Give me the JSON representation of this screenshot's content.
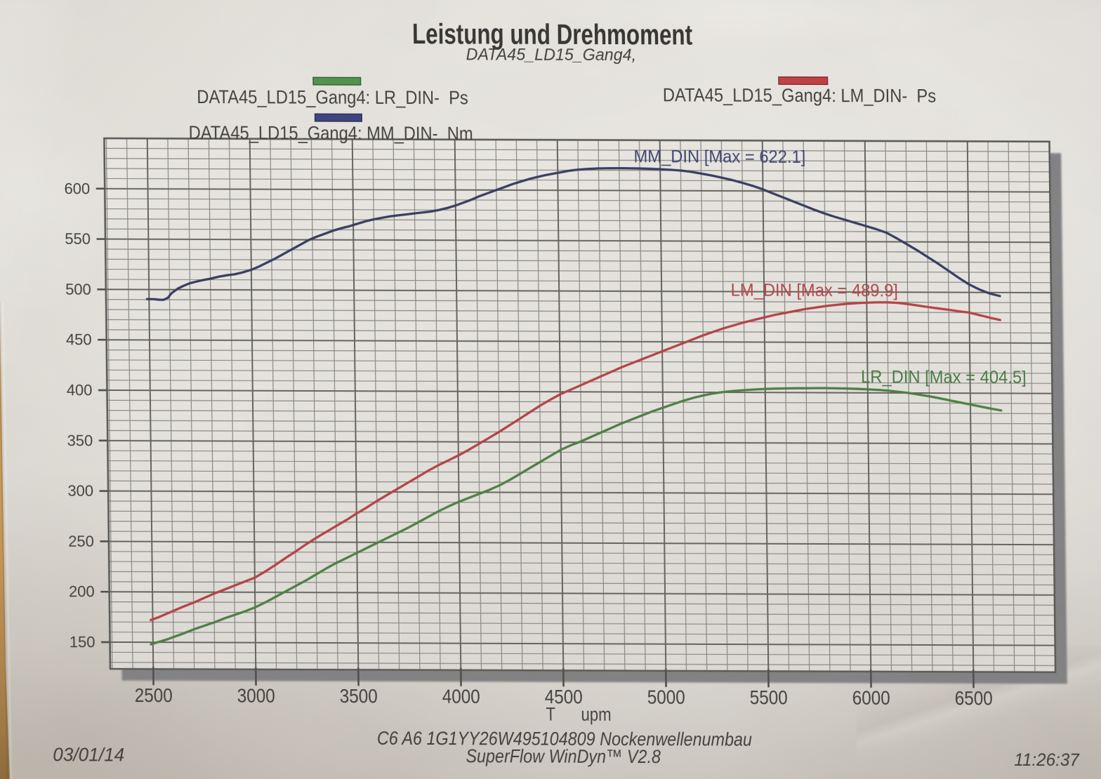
{
  "title": "Leistung und Drehmoment",
  "subtitle": "DATA45_LD15_Gang4,",
  "legend": [
    {
      "series": "LR_DIN",
      "label": "DATA45_LD15_Gang4: LR_DIN-  Ps",
      "color": "#3c8a3c",
      "edge": "#1e5420"
    },
    {
      "series": "MM_DIN",
      "label": "DATA45_LD15_Gang4: MM_DIN-  Nm",
      "color": "#2a3172",
      "edge": "#151a45"
    },
    {
      "series": "LM_DIN",
      "label": "DATA45_LD15_Gang4: LM_DIN-  Ps",
      "color": "#bb2d33",
      "edge": "#7c181d"
    }
  ],
  "annotations": [
    {
      "series": "MM_DIN",
      "text": "MM_DIN [Max = 622.1]",
      "color": "#2b3462"
    },
    {
      "series": "LM_DIN",
      "text": "LM_DIN [Max = 489.9]",
      "color": "#ae3237"
    },
    {
      "series": "LR_DIN",
      "text": "LR_DIN [Max = 404.5]",
      "color": "#35702f"
    }
  ],
  "axis": {
    "x_label": "T      upm",
    "x_tick_labels": [
      "2500",
      "3000",
      "3500",
      "4000",
      "4500",
      "5000",
      "5500",
      "6000",
      "6500"
    ],
    "y_tick_labels": [
      "150",
      "200",
      "250",
      "300",
      "350",
      "400",
      "450",
      "500",
      "550",
      "600"
    ]
  },
  "footer": {
    "date": "03/01/14",
    "vehicle": "C6 A6 1G1YY26W495104809 Nockenwellenumbau",
    "software": "SuperFlow WinDyn™ V2.8",
    "time": "11:26:37"
  },
  "chart_data": {
    "type": "line",
    "title": "Leistung und Drehmoment",
    "xlabel": "T upm",
    "x_ticks": [
      2500,
      3000,
      3500,
      4000,
      4500,
      5000,
      5500,
      6000,
      6500
    ],
    "y_ticks": [
      150,
      200,
      250,
      300,
      350,
      400,
      450,
      500,
      550,
      600
    ],
    "xlim": [
      2290,
      6900
    ],
    "ylim": [
      123.5,
      650
    ],
    "x_minor_step": 100,
    "y_minor_step": 10,
    "x_major_step": 500,
    "y_major_step": 50,
    "grid": true,
    "series": [
      {
        "name": "MM_DIN",
        "unit": "Nm",
        "max": 622.1,
        "color": "#222950",
        "points": [
          [
            2490,
            490.5
          ],
          [
            2520,
            490.5
          ],
          [
            2550,
            490
          ],
          [
            2570,
            489.8
          ],
          [
            2592,
            492
          ],
          [
            2610,
            496.5
          ],
          [
            2640,
            501
          ],
          [
            2670,
            504
          ],
          [
            2700,
            506.5
          ],
          [
            2730,
            508
          ],
          [
            2760,
            509.5
          ],
          [
            2800,
            511
          ],
          [
            2840,
            513
          ],
          [
            2880,
            514.5
          ],
          [
            2920,
            515.5
          ],
          [
            2960,
            517.5
          ],
          [
            3000,
            520
          ],
          [
            3040,
            523.5
          ],
          [
            3080,
            527.5
          ],
          [
            3120,
            531.5
          ],
          [
            3160,
            536
          ],
          [
            3200,
            540.5
          ],
          [
            3240,
            545
          ],
          [
            3280,
            549.5
          ],
          [
            3320,
            553
          ],
          [
            3360,
            556
          ],
          [
            3400,
            559
          ],
          [
            3440,
            561.5
          ],
          [
            3480,
            563.5
          ],
          [
            3520,
            566
          ],
          [
            3560,
            568.5
          ],
          [
            3600,
            570.5
          ],
          [
            3640,
            572
          ],
          [
            3680,
            573.5
          ],
          [
            3720,
            574.5
          ],
          [
            3760,
            575.5
          ],
          [
            3800,
            576.5
          ],
          [
            3840,
            577.5
          ],
          [
            3880,
            578.5
          ],
          [
            3920,
            580
          ],
          [
            3960,
            582
          ],
          [
            4000,
            584.5
          ],
          [
            4040,
            587.5
          ],
          [
            4080,
            590.5
          ],
          [
            4120,
            594
          ],
          [
            4160,
            597
          ],
          [
            4200,
            600
          ],
          [
            4240,
            603
          ],
          [
            4280,
            606
          ],
          [
            4320,
            608.5
          ],
          [
            4360,
            611
          ],
          [
            4400,
            613
          ],
          [
            4440,
            615
          ],
          [
            4480,
            616.5
          ],
          [
            4520,
            618
          ],
          [
            4560,
            619.5
          ],
          [
            4600,
            620.5
          ],
          [
            4650,
            621.3
          ],
          [
            4700,
            621.8
          ],
          [
            4750,
            622
          ],
          [
            4800,
            622.1
          ],
          [
            4850,
            622
          ],
          [
            4900,
            621.9
          ],
          [
            4950,
            621.6
          ],
          [
            5000,
            621.2
          ],
          [
            5050,
            620.7
          ],
          [
            5100,
            620
          ],
          [
            5150,
            618.7
          ],
          [
            5200,
            617
          ],
          [
            5250,
            615.2
          ],
          [
            5300,
            613
          ],
          [
            5350,
            610.7
          ],
          [
            5400,
            608
          ],
          [
            5450,
            605
          ],
          [
            5500,
            601.5
          ],
          [
            5550,
            597.5
          ],
          [
            5600,
            593.5
          ],
          [
            5650,
            589.5
          ],
          [
            5700,
            585.5
          ],
          [
            5750,
            581.5
          ],
          [
            5800,
            577.8
          ],
          [
            5850,
            574.5
          ],
          [
            5900,
            571.5
          ],
          [
            5950,
            568.5
          ],
          [
            6000,
            565.5
          ],
          [
            6050,
            562.5
          ],
          [
            6100,
            559
          ],
          [
            6150,
            553.5
          ],
          [
            6200,
            547.5
          ],
          [
            6250,
            541.5
          ],
          [
            6300,
            535
          ],
          [
            6350,
            528.5
          ],
          [
            6400,
            521.5
          ],
          [
            6450,
            514.5
          ],
          [
            6500,
            508
          ],
          [
            6550,
            503
          ],
          [
            6600,
            499
          ],
          [
            6650,
            496.5
          ]
        ]
      },
      {
        "name": "LM_DIN",
        "unit": "Ps",
        "max": 489.9,
        "color": "#ad2f34",
        "points": [
          [
            2490,
            172
          ],
          [
            2530,
            175
          ],
          [
            2570,
            178.5
          ],
          [
            2610,
            182
          ],
          [
            2650,
            185.5
          ],
          [
            2700,
            189.5
          ],
          [
            2750,
            194
          ],
          [
            2800,
            198.5
          ],
          [
            2850,
            202.5
          ],
          [
            2900,
            206.5
          ],
          [
            2950,
            210.5
          ],
          [
            3000,
            214.5
          ],
          [
            3050,
            220.5
          ],
          [
            3100,
            227
          ],
          [
            3150,
            234
          ],
          [
            3200,
            240.5
          ],
          [
            3250,
            247.5
          ],
          [
            3300,
            254
          ],
          [
            3350,
            260
          ],
          [
            3400,
            266
          ],
          [
            3450,
            272
          ],
          [
            3500,
            278.5
          ],
          [
            3550,
            284.5
          ],
          [
            3600,
            291
          ],
          [
            3650,
            297
          ],
          [
            3700,
            303
          ],
          [
            3750,
            309
          ],
          [
            3800,
            315
          ],
          [
            3850,
            321
          ],
          [
            3900,
            326.5
          ],
          [
            3950,
            331.5
          ],
          [
            4000,
            336.5
          ],
          [
            4050,
            342
          ],
          [
            4100,
            348
          ],
          [
            4150,
            354
          ],
          [
            4200,
            360
          ],
          [
            4250,
            366.5
          ],
          [
            4300,
            373
          ],
          [
            4350,
            379.5
          ],
          [
            4400,
            386
          ],
          [
            4450,
            392
          ],
          [
            4500,
            397.5
          ],
          [
            4550,
            402
          ],
          [
            4600,
            406.5
          ],
          [
            4650,
            411
          ],
          [
            4700,
            415.5
          ],
          [
            4750,
            420
          ],
          [
            4800,
            424.5
          ],
          [
            4850,
            428.5
          ],
          [
            4900,
            432.5
          ],
          [
            4950,
            436.5
          ],
          [
            5000,
            440.5
          ],
          [
            5050,
            444.5
          ],
          [
            5100,
            448.5
          ],
          [
            5150,
            452.5
          ],
          [
            5200,
            456.5
          ],
          [
            5250,
            460
          ],
          [
            5300,
            463.5
          ],
          [
            5350,
            466.5
          ],
          [
            5400,
            469.5
          ],
          [
            5450,
            472
          ],
          [
            5500,
            474.5
          ],
          [
            5550,
            477
          ],
          [
            5600,
            479
          ],
          [
            5650,
            481
          ],
          [
            5700,
            483
          ],
          [
            5750,
            484.5
          ],
          [
            5800,
            486
          ],
          [
            5850,
            487.2
          ],
          [
            5900,
            488.2
          ],
          [
            5950,
            489
          ],
          [
            6000,
            489.5
          ],
          [
            6050,
            489.8
          ],
          [
            6100,
            489.9
          ],
          [
            6150,
            489.4
          ],
          [
            6200,
            488.3
          ],
          [
            6250,
            486.8
          ],
          [
            6300,
            485.3
          ],
          [
            6350,
            484
          ],
          [
            6400,
            482.7
          ],
          [
            6450,
            481.3
          ],
          [
            6500,
            480
          ],
          [
            6550,
            477.5
          ],
          [
            6600,
            475
          ],
          [
            6650,
            472.8
          ]
        ]
      },
      {
        "name": "LR_DIN",
        "unit": "Ps",
        "max": 404.5,
        "color": "#3a7231",
        "points": [
          [
            2490,
            148
          ],
          [
            2530,
            150.5
          ],
          [
            2570,
            153
          ],
          [
            2610,
            156
          ],
          [
            2650,
            159
          ],
          [
            2700,
            163
          ],
          [
            2750,
            166.5
          ],
          [
            2800,
            170
          ],
          [
            2850,
            174
          ],
          [
            2900,
            177.5
          ],
          [
            2950,
            181
          ],
          [
            3000,
            185
          ],
          [
            3050,
            190
          ],
          [
            3100,
            195.5
          ],
          [
            3150,
            201
          ],
          [
            3200,
            206.5
          ],
          [
            3250,
            212
          ],
          [
            3300,
            218
          ],
          [
            3350,
            224
          ],
          [
            3400,
            229.5
          ],
          [
            3450,
            234.5
          ],
          [
            3500,
            239.5
          ],
          [
            3550,
            244.5
          ],
          [
            3600,
            249.5
          ],
          [
            3650,
            254.5
          ],
          [
            3700,
            259.5
          ],
          [
            3750,
            264.5
          ],
          [
            3800,
            270
          ],
          [
            3850,
            275.5
          ],
          [
            3900,
            281
          ],
          [
            3950,
            286
          ],
          [
            4000,
            290.5
          ],
          [
            4050,
            294.5
          ],
          [
            4100,
            298.5
          ],
          [
            4150,
            302.5
          ],
          [
            4200,
            307
          ],
          [
            4250,
            312.5
          ],
          [
            4300,
            318.5
          ],
          [
            4350,
            324.5
          ],
          [
            4400,
            330.5
          ],
          [
            4450,
            336.5
          ],
          [
            4500,
            342.5
          ],
          [
            4550,
            347
          ],
          [
            4600,
            351
          ],
          [
            4650,
            355.5
          ],
          [
            4700,
            360
          ],
          [
            4750,
            364.5
          ],
          [
            4800,
            369
          ],
          [
            4850,
            373
          ],
          [
            4900,
            377
          ],
          [
            4950,
            381
          ],
          [
            5000,
            384.5
          ],
          [
            5050,
            388
          ],
          [
            5100,
            391.5
          ],
          [
            5150,
            394.5
          ],
          [
            5200,
            397
          ],
          [
            5250,
            399
          ],
          [
            5300,
            400.5
          ],
          [
            5350,
            401.5
          ],
          [
            5400,
            402.3
          ],
          [
            5450,
            403
          ],
          [
            5500,
            403.5
          ],
          [
            5550,
            403.9
          ],
          [
            5600,
            404.1
          ],
          [
            5650,
            404.3
          ],
          [
            5700,
            404.4
          ],
          [
            5750,
            404.5
          ],
          [
            5800,
            404.5
          ],
          [
            5850,
            404.4
          ],
          [
            5900,
            404.2
          ],
          [
            5950,
            403.9
          ],
          [
            6000,
            403.5
          ],
          [
            6050,
            403
          ],
          [
            6100,
            402.3
          ],
          [
            6150,
            401.2
          ],
          [
            6200,
            400
          ],
          [
            6250,
            398.5
          ],
          [
            6300,
            396.8
          ],
          [
            6350,
            394.9
          ],
          [
            6400,
            392.8
          ],
          [
            6450,
            390.8
          ],
          [
            6500,
            388.8
          ],
          [
            6550,
            386.8
          ],
          [
            6600,
            384.8
          ],
          [
            6650,
            383
          ]
        ]
      }
    ]
  }
}
